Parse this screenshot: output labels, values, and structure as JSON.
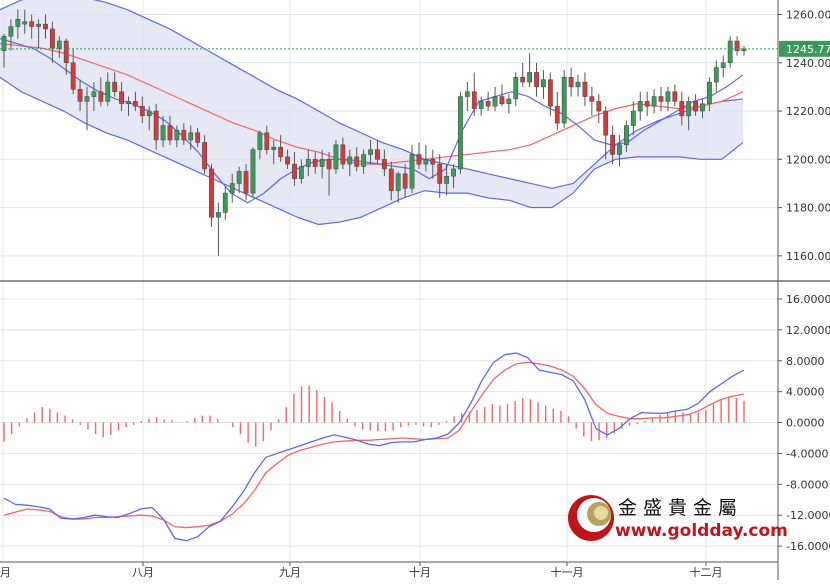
{
  "chart_data": [
    {
      "type": "candlestick",
      "title": "",
      "price_axis_ticks": [
        "1260.00",
        "1240.00",
        "1220.00",
        "1200.00",
        "1180.00",
        "1160.00"
      ],
      "ylim": [
        1150,
        1266
      ],
      "last_price_label": "1245.77",
      "last_price": 1245.77,
      "month_labels": [
        "八月",
        "九月",
        "十月",
        "十一月",
        "十二月"
      ],
      "month_label_partial_left": "月",
      "candles": [
        {
          "o": 1245,
          "h": 1252,
          "l": 1238,
          "c": 1251
        },
        {
          "o": 1251,
          "h": 1258,
          "l": 1245,
          "c": 1255
        },
        {
          "o": 1255,
          "h": 1262,
          "l": 1250,
          "c": 1258
        },
        {
          "o": 1256,
          "h": 1262,
          "l": 1252,
          "c": 1257
        },
        {
          "o": 1257,
          "h": 1260,
          "l": 1250,
          "c": 1255
        },
        {
          "o": 1255,
          "h": 1258,
          "l": 1246,
          "c": 1256
        },
        {
          "o": 1256,
          "h": 1260,
          "l": 1250,
          "c": 1254
        },
        {
          "o": 1254,
          "h": 1257,
          "l": 1240,
          "c": 1246
        },
        {
          "o": 1246,
          "h": 1251,
          "l": 1242,
          "c": 1249
        },
        {
          "o": 1249,
          "h": 1250,
          "l": 1235,
          "c": 1240
        },
        {
          "o": 1240,
          "h": 1246,
          "l": 1227,
          "c": 1229
        },
        {
          "o": 1229,
          "h": 1233,
          "l": 1220,
          "c": 1224
        },
        {
          "o": 1224,
          "h": 1230,
          "l": 1212,
          "c": 1226
        },
        {
          "o": 1226,
          "h": 1232,
          "l": 1220,
          "c": 1228
        },
        {
          "o": 1228,
          "h": 1234,
          "l": 1222,
          "c": 1224
        },
        {
          "o": 1224,
          "h": 1236,
          "l": 1222,
          "c": 1232
        },
        {
          "o": 1232,
          "h": 1236,
          "l": 1226,
          "c": 1228
        },
        {
          "o": 1228,
          "h": 1232,
          "l": 1220,
          "c": 1223
        },
        {
          "o": 1223,
          "h": 1226,
          "l": 1218,
          "c": 1224
        },
        {
          "o": 1224,
          "h": 1228,
          "l": 1220,
          "c": 1222
        },
        {
          "o": 1222,
          "h": 1226,
          "l": 1215,
          "c": 1218
        },
        {
          "o": 1218,
          "h": 1222,
          "l": 1212,
          "c": 1220
        },
        {
          "o": 1220,
          "h": 1223,
          "l": 1204,
          "c": 1208
        },
        {
          "o": 1208,
          "h": 1218,
          "l": 1205,
          "c": 1214
        },
        {
          "o": 1214,
          "h": 1218,
          "l": 1206,
          "c": 1208
        },
        {
          "o": 1208,
          "h": 1214,
          "l": 1205,
          "c": 1212
        },
        {
          "o": 1212,
          "h": 1215,
          "l": 1206,
          "c": 1208
        },
        {
          "o": 1208,
          "h": 1214,
          "l": 1204,
          "c": 1211
        },
        {
          "o": 1211,
          "h": 1213,
          "l": 1205,
          "c": 1207
        },
        {
          "o": 1207,
          "h": 1210,
          "l": 1194,
          "c": 1196
        },
        {
          "o": 1196,
          "h": 1198,
          "l": 1172,
          "c": 1176
        },
        {
          "o": 1176,
          "h": 1182,
          "l": 1160,
          "c": 1178
        },
        {
          "o": 1178,
          "h": 1189,
          "l": 1175,
          "c": 1186
        },
        {
          "o": 1186,
          "h": 1194,
          "l": 1182,
          "c": 1190
        },
        {
          "o": 1190,
          "h": 1197,
          "l": 1186,
          "c": 1195
        },
        {
          "o": 1195,
          "h": 1198,
          "l": 1183,
          "c": 1186
        },
        {
          "o": 1186,
          "h": 1205,
          "l": 1184,
          "c": 1204
        },
        {
          "o": 1204,
          "h": 1212,
          "l": 1200,
          "c": 1211
        },
        {
          "o": 1211,
          "h": 1214,
          "l": 1202,
          "c": 1204
        },
        {
          "o": 1204,
          "h": 1208,
          "l": 1198,
          "c": 1205
        },
        {
          "o": 1205,
          "h": 1210,
          "l": 1199,
          "c": 1201
        },
        {
          "o": 1201,
          "h": 1204,
          "l": 1196,
          "c": 1198
        },
        {
          "o": 1198,
          "h": 1203,
          "l": 1189,
          "c": 1192
        },
        {
          "o": 1192,
          "h": 1200,
          "l": 1190,
          "c": 1197
        },
        {
          "o": 1197,
          "h": 1204,
          "l": 1193,
          "c": 1200
        },
        {
          "o": 1200,
          "h": 1203,
          "l": 1194,
          "c": 1197
        },
        {
          "o": 1197,
          "h": 1204,
          "l": 1192,
          "c": 1200
        },
        {
          "o": 1200,
          "h": 1203,
          "l": 1185,
          "c": 1196
        },
        {
          "o": 1196,
          "h": 1208,
          "l": 1194,
          "c": 1206
        },
        {
          "o": 1206,
          "h": 1209,
          "l": 1196,
          "c": 1198
        },
        {
          "o": 1198,
          "h": 1204,
          "l": 1193,
          "c": 1201
        },
        {
          "o": 1201,
          "h": 1205,
          "l": 1195,
          "c": 1197
        },
        {
          "o": 1197,
          "h": 1204,
          "l": 1194,
          "c": 1202
        },
        {
          "o": 1202,
          "h": 1208,
          "l": 1198,
          "c": 1204
        },
        {
          "o": 1204,
          "h": 1208,
          "l": 1198,
          "c": 1200
        },
        {
          "o": 1200,
          "h": 1204,
          "l": 1193,
          "c": 1196
        },
        {
          "o": 1196,
          "h": 1199,
          "l": 1183,
          "c": 1187
        },
        {
          "o": 1187,
          "h": 1195,
          "l": 1182,
          "c": 1194
        },
        {
          "o": 1194,
          "h": 1198,
          "l": 1184,
          "c": 1188
        },
        {
          "o": 1188,
          "h": 1206,
          "l": 1186,
          "c": 1202
        },
        {
          "o": 1202,
          "h": 1207,
          "l": 1196,
          "c": 1198
        },
        {
          "o": 1198,
          "h": 1206,
          "l": 1195,
          "c": 1200
        },
        {
          "o": 1200,
          "h": 1204,
          "l": 1192,
          "c": 1198
        },
        {
          "o": 1198,
          "h": 1202,
          "l": 1184,
          "c": 1190
        },
        {
          "o": 1190,
          "h": 1198,
          "l": 1185,
          "c": 1193
        },
        {
          "o": 1193,
          "h": 1198,
          "l": 1188,
          "c": 1196
        },
        {
          "o": 1196,
          "h": 1228,
          "l": 1194,
          "c": 1226
        },
        {
          "o": 1226,
          "h": 1232,
          "l": 1220,
          "c": 1228
        },
        {
          "o": 1228,
          "h": 1236,
          "l": 1218,
          "c": 1221
        },
        {
          "o": 1221,
          "h": 1226,
          "l": 1218,
          "c": 1224
        },
        {
          "o": 1224,
          "h": 1228,
          "l": 1220,
          "c": 1222
        },
        {
          "o": 1222,
          "h": 1230,
          "l": 1220,
          "c": 1226
        },
        {
          "o": 1226,
          "h": 1231,
          "l": 1222,
          "c": 1223
        },
        {
          "o": 1223,
          "h": 1227,
          "l": 1219,
          "c": 1225
        },
        {
          "o": 1225,
          "h": 1236,
          "l": 1222,
          "c": 1234
        },
        {
          "o": 1234,
          "h": 1240,
          "l": 1230,
          "c": 1232
        },
        {
          "o": 1232,
          "h": 1244,
          "l": 1230,
          "c": 1236
        },
        {
          "o": 1236,
          "h": 1240,
          "l": 1226,
          "c": 1230
        },
        {
          "o": 1230,
          "h": 1237,
          "l": 1225,
          "c": 1233
        },
        {
          "o": 1233,
          "h": 1236,
          "l": 1218,
          "c": 1222
        },
        {
          "o": 1222,
          "h": 1228,
          "l": 1212,
          "c": 1215
        },
        {
          "o": 1215,
          "h": 1237,
          "l": 1213,
          "c": 1234
        },
        {
          "o": 1234,
          "h": 1238,
          "l": 1226,
          "c": 1230
        },
        {
          "o": 1230,
          "h": 1235,
          "l": 1226,
          "c": 1232
        },
        {
          "o": 1232,
          "h": 1236,
          "l": 1222,
          "c": 1226
        },
        {
          "o": 1226,
          "h": 1230,
          "l": 1218,
          "c": 1224
        },
        {
          "o": 1224,
          "h": 1227,
          "l": 1215,
          "c": 1220
        },
        {
          "o": 1220,
          "h": 1222,
          "l": 1200,
          "c": 1210
        },
        {
          "o": 1210,
          "h": 1214,
          "l": 1198,
          "c": 1202
        },
        {
          "o": 1202,
          "h": 1210,
          "l": 1197,
          "c": 1206
        },
        {
          "o": 1206,
          "h": 1216,
          "l": 1203,
          "c": 1214
        },
        {
          "o": 1214,
          "h": 1224,
          "l": 1210,
          "c": 1220
        },
        {
          "o": 1220,
          "h": 1228,
          "l": 1216,
          "c": 1224
        },
        {
          "o": 1224,
          "h": 1228,
          "l": 1218,
          "c": 1222
        },
        {
          "o": 1222,
          "h": 1229,
          "l": 1219,
          "c": 1226
        },
        {
          "o": 1226,
          "h": 1230,
          "l": 1220,
          "c": 1224
        },
        {
          "o": 1224,
          "h": 1230,
          "l": 1220,
          "c": 1228
        },
        {
          "o": 1228,
          "h": 1231,
          "l": 1222,
          "c": 1224
        },
        {
          "o": 1224,
          "h": 1228,
          "l": 1214,
          "c": 1218
        },
        {
          "o": 1218,
          "h": 1226,
          "l": 1212,
          "c": 1224
        },
        {
          "o": 1224,
          "h": 1227,
          "l": 1218,
          "c": 1220
        },
        {
          "o": 1220,
          "h": 1225,
          "l": 1217,
          "c": 1223
        },
        {
          "o": 1223,
          "h": 1234,
          "l": 1220,
          "c": 1232
        },
        {
          "o": 1232,
          "h": 1241,
          "l": 1228,
          "c": 1238
        },
        {
          "o": 1238,
          "h": 1243,
          "l": 1234,
          "c": 1240
        },
        {
          "o": 1240,
          "h": 1251,
          "l": 1238,
          "c": 1249
        },
        {
          "o": 1249,
          "h": 1251,
          "l": 1243,
          "c": 1245
        },
        {
          "o": 1245,
          "h": 1247,
          "l": 1243,
          "c": 1245.77
        }
      ],
      "bollinger_upper": [
        1262,
        1266,
        1268,
        1268,
        1267,
        1265,
        1262,
        1258,
        1254,
        1249,
        1244,
        1239,
        1234,
        1229,
        1225,
        1220,
        1215,
        1211,
        1207,
        1204,
        1200,
        1198,
        1196,
        1194,
        1192,
        1190,
        1188,
        1190,
        1198,
        1206,
        1212,
        1216,
        1219,
        1222,
        1224,
        1225
      ],
      "bollinger_mid": [
        1248,
        1247,
        1246,
        1244,
        1241,
        1238,
        1235,
        1231,
        1227,
        1223,
        1219,
        1215,
        1212,
        1208,
        1205,
        1203,
        1200,
        1198,
        1198,
        1199,
        1200,
        1201,
        1202,
        1203,
        1204,
        1206,
        1210,
        1214,
        1218,
        1221,
        1223,
        1222,
        1221,
        1222,
        1224,
        1228
      ],
      "bollinger_lower": [
        1234,
        1228,
        1224,
        1220,
        1215,
        1211,
        1208,
        1204,
        1200,
        1196,
        1192,
        1188,
        1184,
        1180,
        1176,
        1173,
        1174,
        1176,
        1180,
        1184,
        1187,
        1186,
        1186,
        1184,
        1183,
        1180,
        1180,
        1186,
        1196,
        1200,
        1201,
        1201,
        1201,
        1200,
        1200,
        1207
      ],
      "fast_line": [
        1250,
        1248,
        1246,
        1242,
        1237,
        1232,
        1228,
        1225,
        1223,
        1220,
        1216,
        1210,
        1203,
        1194,
        1186,
        1182,
        1186,
        1192,
        1196,
        1199,
        1200,
        1200,
        1199,
        1198,
        1197,
        1196,
        1192,
        1196,
        1212,
        1224,
        1226,
        1228,
        1226,
        1222,
        1219,
        1214,
        1208,
        1206,
        1207,
        1212,
        1216,
        1220,
        1224,
        1226,
        1230,
        1235
      ],
      "lower_panel": {
        "ticks": [
          "16.0000",
          "12.0000",
          "8.0000",
          "4.0000",
          "0.0000",
          "-4.0000",
          "-8.0000",
          "-12.0000",
          "-16.0000"
        ],
        "ylim": [
          -17.8,
          18.2
        ],
        "blue_line": [
          -9.8,
          -10.6,
          -10.7,
          -10.9,
          -11.2,
          -12.4,
          -12.5,
          -12.3,
          -12.0,
          -12.2,
          -12.3,
          -11.8,
          -11.2,
          -11.0,
          -12.5,
          -15.0,
          -15.3,
          -14.8,
          -13.5,
          -12.8,
          -11.0,
          -9.0,
          -6.5,
          -4.5,
          -4.0,
          -3.5,
          -3.0,
          -2.5,
          -2.0,
          -1.6,
          -1.9,
          -2.3,
          -2.8,
          -3.0,
          -2.6,
          -2.5,
          -2.5,
          -2.2,
          -2.0,
          -1.5,
          0.0,
          2.5,
          5.5,
          7.8,
          8.8,
          9.0,
          8.4,
          6.8,
          6.5,
          6.2,
          5.4,
          3.0,
          -0.8,
          -1.6,
          -0.8,
          0.5,
          1.3,
          1.2,
          1.2,
          1.5,
          1.7,
          2.5,
          4.0,
          5.0,
          6.0,
          6.8
        ],
        "red_line": [
          -12.0,
          -11.6,
          -11.2,
          -11.3,
          -11.5,
          -12.2,
          -12.5,
          -12.5,
          -12.3,
          -12.3,
          -12.2,
          -12.1,
          -12.0,
          -12.1,
          -12.6,
          -13.5,
          -13.6,
          -13.5,
          -13.3,
          -12.8,
          -11.9,
          -10.6,
          -8.8,
          -6.5,
          -5.3,
          -4.2,
          -3.6,
          -3.2,
          -2.8,
          -2.5,
          -2.4,
          -2.3,
          -2.3,
          -2.2,
          -2.1,
          -2.0,
          -2.1,
          -2.2,
          -2.1,
          -2.0,
          -1.0,
          1.4,
          3.6,
          5.6,
          6.8,
          7.6,
          7.8,
          7.6,
          7.3,
          6.8,
          6.0,
          4.4,
          2.3,
          1.2,
          0.8,
          0.5,
          0.5,
          0.6,
          0.6,
          0.8,
          1.0,
          1.5,
          2.3,
          3.0,
          3.4,
          3.7
        ],
        "histogram": [
          -2.5,
          -1.5,
          -0.5,
          0.6,
          1.3,
          2.0,
          1.8,
          1.3,
          0.9,
          0.4,
          -0.3,
          -0.9,
          -1.5,
          -1.9,
          -1.6,
          -1.0,
          -0.6,
          -0.3,
          0.2,
          0.5,
          0.7,
          0.4,
          0.3,
          0.0,
          0.2,
          0.6,
          0.9,
          0.9,
          0.5,
          0.0,
          -0.6,
          -1.5,
          -2.6,
          -3.1,
          -2.4,
          -1.0,
          0.4,
          2.0,
          3.7,
          4.7,
          4.8,
          4.2,
          3.3,
          2.6,
          1.5,
          0.5,
          -0.5,
          -0.9,
          -1.0,
          -1.1,
          -1.1,
          -1.0,
          -0.6,
          -0.4,
          -0.3,
          -0.5,
          -0.6,
          -0.3,
          0.2,
          0.8,
          1.2,
          1.4,
          1.6,
          2.0,
          2.4,
          2.2,
          2.4,
          2.8,
          3.2,
          3.0,
          2.6,
          2.2,
          1.8,
          1.5,
          0.8,
          -0.8,
          -1.8,
          -2.4,
          -2.3,
          -2.0,
          -1.4,
          -0.8,
          -0.4,
          -0.2,
          0.2,
          0.7,
          1.0,
          1.3,
          1.4,
          1.3,
          1.2,
          1.3,
          1.6,
          2.4,
          3.0,
          3.4,
          3.2,
          2.8
        ],
        "series": [
          {
            "color": "#5c68e6"
          },
          {
            "color": "#f06767"
          }
        ]
      }
    }
  ],
  "colors": {
    "up_candle": "#3a9a5a",
    "down_candle": "#d43a3a",
    "band_fill": "#dfe0f1",
    "band_line": "#5c68e6",
    "mid_line": "#f06767",
    "fast_line": "#5c68e6",
    "last_price_line": "#3a9a5a",
    "grid": "#e4e4e4"
  },
  "brand": {
    "chinese_name": "金盛貴金屬",
    "url": "www.goldday.com"
  }
}
